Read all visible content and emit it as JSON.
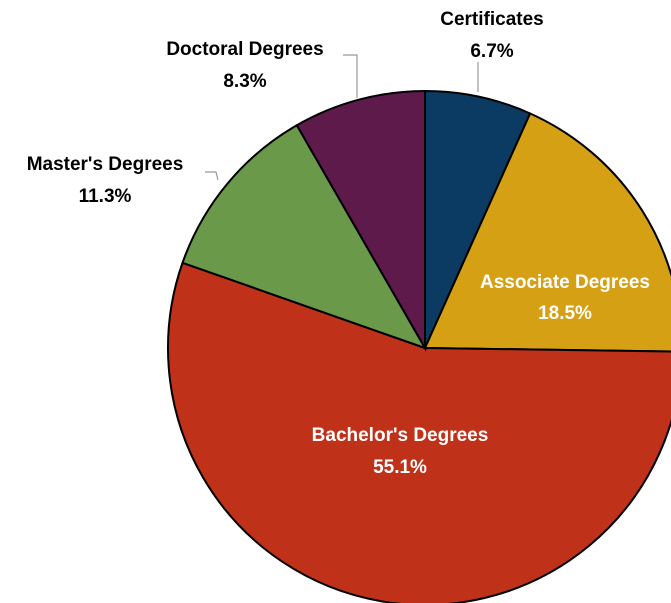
{
  "chart_data": {
    "type": "pie",
    "categories": [
      "Certificates",
      "Associate Degrees",
      "Bachelor's Degrees",
      "Master's Degrees",
      "Doctoral Degrees"
    ],
    "values": [
      6.7,
      18.5,
      55.1,
      11.3,
      8.3
    ],
    "value_labels": [
      "6.7%",
      "18.5%",
      "55.1%",
      "11.3%",
      "8.3%"
    ],
    "colors": [
      "#0b3a63",
      "#d6a014",
      "#c0311a",
      "#6a994a",
      "#5e1a4b"
    ]
  }
}
